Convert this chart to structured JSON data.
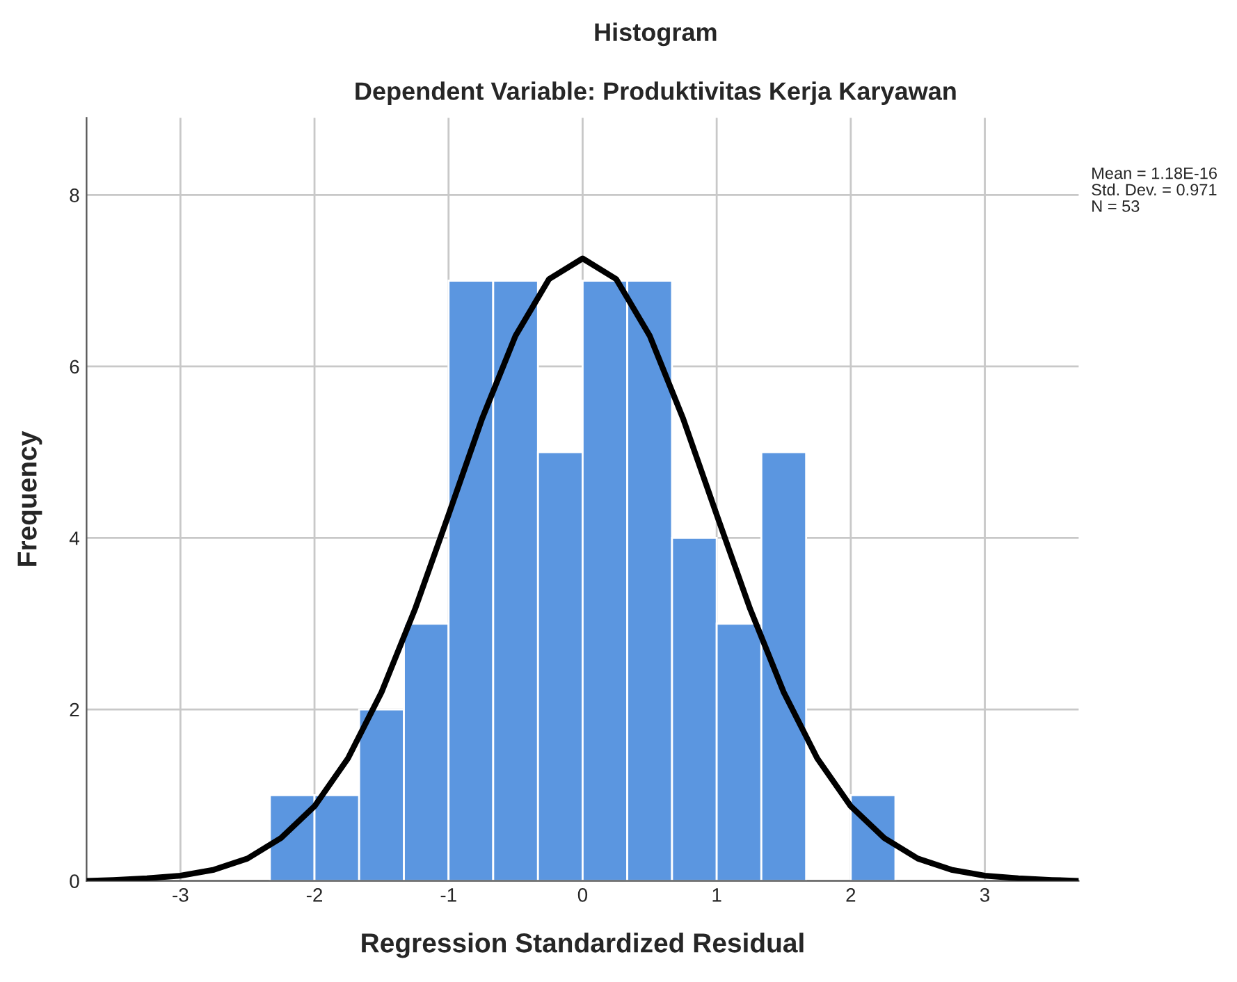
{
  "chart_data": {
    "type": "histogram",
    "title": "Histogram",
    "subtitle": "Dependent Variable: Produktivitas Kerja Karyawan",
    "xlabel": "Regression Standardized Residual",
    "ylabel": "Frequency",
    "bins": [
      -2.333,
      -2.0,
      -1.667,
      -1.333,
      -1.0,
      -0.667,
      -0.333,
      0.0,
      0.333,
      0.667,
      1.0,
      1.333,
      1.667,
      2.0,
      2.333
    ],
    "values": [
      1,
      1,
      2,
      3,
      7,
      7,
      5,
      7,
      7,
      4,
      3,
      5,
      0,
      1
    ],
    "color": "#5b96e0",
    "series": [
      {
        "type": "line",
        "color": "#000000",
        "x": [
          -3.7,
          -3.5,
          -3.25,
          -3.0,
          -2.75,
          -2.5,
          -2.25,
          -2.0,
          -1.75,
          -1.5,
          -1.25,
          -1.0,
          -0.75,
          -0.5,
          -0.25,
          0.0,
          0.25,
          0.5,
          0.75,
          1.0,
          1.25,
          1.5,
          1.75,
          2.0,
          2.25,
          2.5,
          2.75,
          3.0,
          3.25,
          3.5,
          3.7
        ],
        "values": [
          0.0,
          0.01,
          0.03,
          0.06,
          0.13,
          0.26,
          0.5,
          0.87,
          1.43,
          2.2,
          3.17,
          4.27,
          5.39,
          6.36,
          7.02,
          7.26,
          7.02,
          6.36,
          5.39,
          4.27,
          3.17,
          2.2,
          1.43,
          0.87,
          0.5,
          0.26,
          0.13,
          0.06,
          0.03,
          0.01,
          0.0
        ]
      }
    ],
    "xlim": [
      -3.7,
      3.7
    ],
    "xticks": [
      -3,
      -2,
      -1,
      0,
      1,
      2,
      3
    ],
    "ylim": [
      0,
      8.9
    ],
    "yticks": [
      0,
      2,
      4,
      6,
      8
    ],
    "grid": true,
    "annotations": [
      "Mean = 1.18E-16\nStd. Dev. = 0.971\nN = 53"
    ]
  }
}
